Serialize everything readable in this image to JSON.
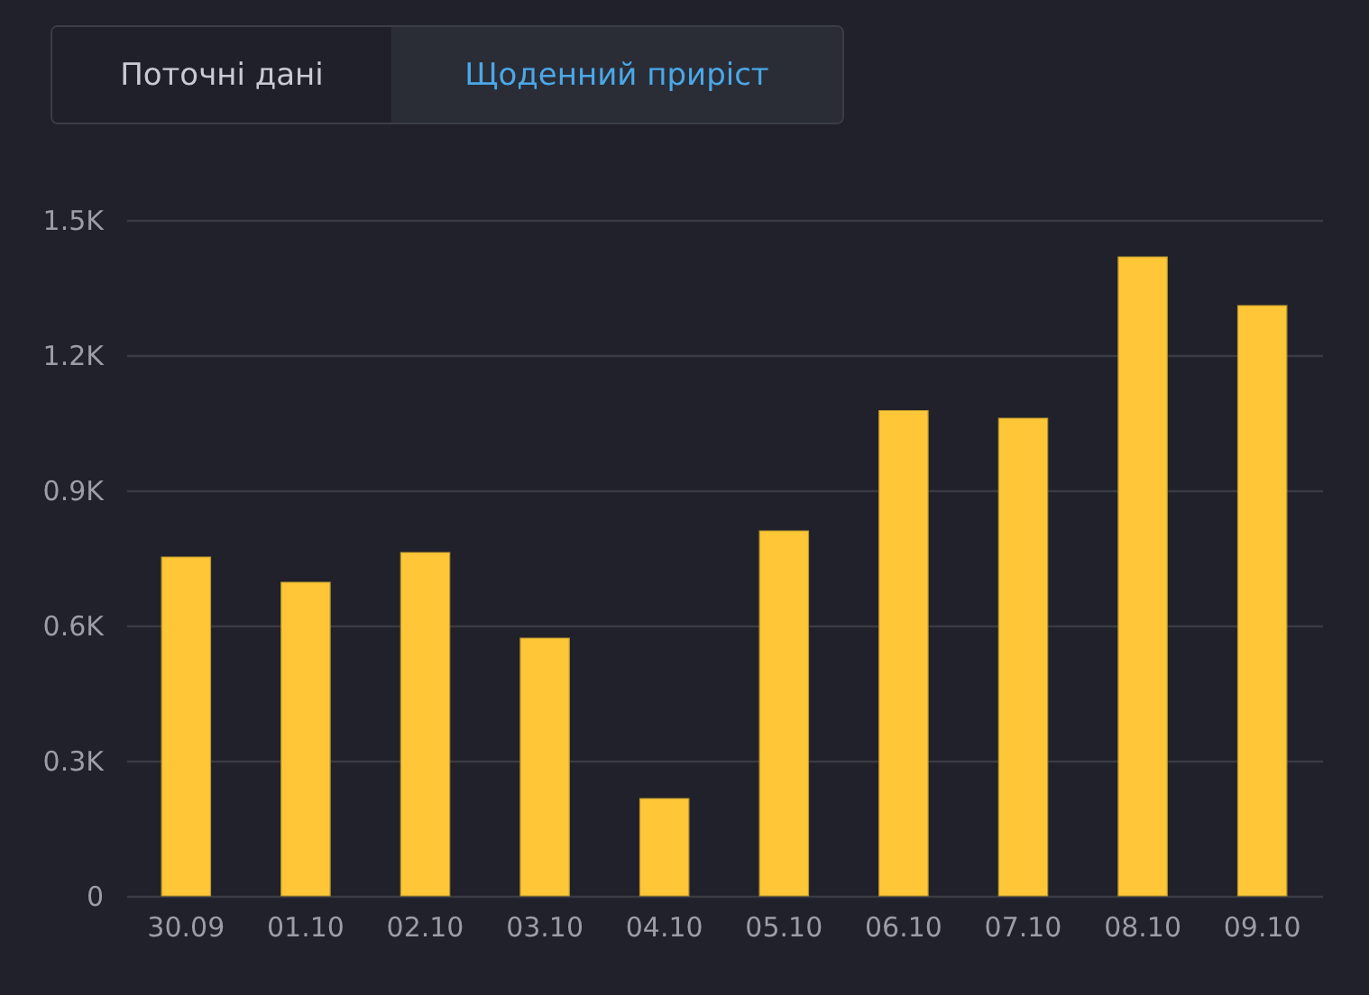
{
  "chart_data": {
    "type": "bar",
    "categories": [
      "30.09",
      "01.10",
      "02.10",
      "03.10",
      "04.10",
      "05.10",
      "06.10",
      "07.10",
      "08.10",
      "09.10"
    ],
    "values": [
      752,
      696,
      762,
      572,
      216,
      810,
      1077,
      1060,
      1418,
      1310
    ],
    "color": "#ffc637",
    "ylim": [
      0,
      1500
    ],
    "yticks": [
      0,
      {
        "value": 300,
        "label": "0.3K"
      },
      {
        "value": 600,
        "label": "0.6K"
      },
      {
        "value": 900,
        "label": "0.9K"
      },
      {
        "value": 1200,
        "label": "1.2K"
      },
      {
        "value": 1500,
        "label": "1.5K"
      }
    ],
    "grid": "y",
    "annotations": [
      "Поточні дані",
      "Щоденний приріст"
    ]
  }
}
